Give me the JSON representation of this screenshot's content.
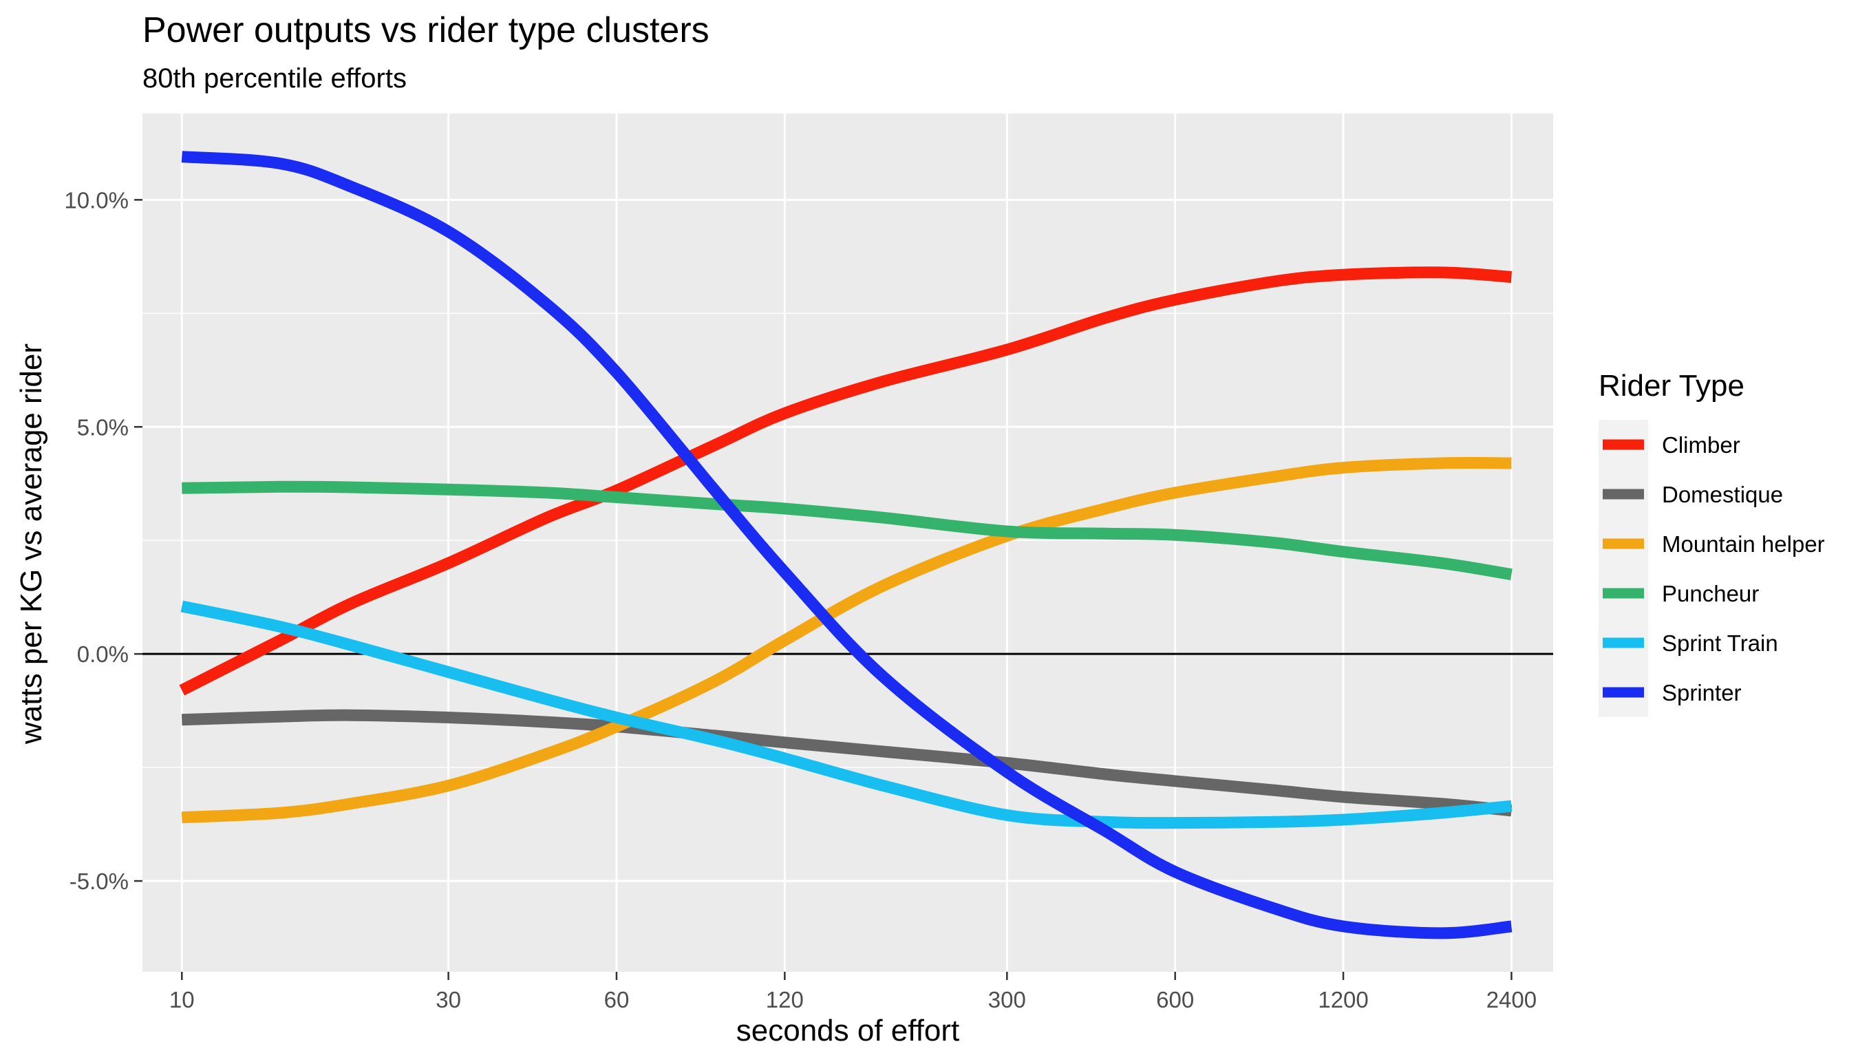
{
  "chart_data": {
    "type": "line",
    "title": "Power outputs vs rider type clusters",
    "subtitle": "80th percentile efforts",
    "xlabel": "seconds of effort",
    "ylabel": "watts per KG vs average rider",
    "x_scale": "log",
    "x_ticks": [
      10,
      30,
      60,
      120,
      300,
      600,
      1200,
      2400
    ],
    "x_tick_labels": [
      "10",
      "30",
      "60",
      "120",
      "300",
      "600",
      "1200",
      "2400"
    ],
    "xlim": [
      8.5,
      2850
    ],
    "y_ticks": [
      -5,
      0,
      5,
      10
    ],
    "y_tick_labels": [
      "-5.0%",
      "0.0%",
      "5.0%",
      "10.0%"
    ],
    "ylim": [
      -7.0,
      11.9
    ],
    "reference_line_y": 0,
    "grid": true,
    "legend_title": "Rider Type",
    "legend_position": "right",
    "x": [
      10,
      15,
      20,
      30,
      45,
      60,
      90,
      120,
      180,
      300,
      450,
      600,
      900,
      1200,
      1800,
      2400
    ],
    "series": [
      {
        "name": "Climber",
        "color": "#F8200A",
        "values": [
          -0.8,
          0.3,
          1.1,
          2.0,
          3.0,
          3.6,
          4.6,
          5.3,
          6.0,
          6.7,
          7.4,
          7.8,
          8.2,
          8.35,
          8.4,
          8.3
        ]
      },
      {
        "name": "Domestique",
        "color": "#666666",
        "values": [
          -1.45,
          -1.38,
          -1.35,
          -1.4,
          -1.5,
          -1.6,
          -1.8,
          -1.95,
          -2.15,
          -2.4,
          -2.65,
          -2.8,
          -3.0,
          -3.15,
          -3.3,
          -3.45
        ]
      },
      {
        "name": "Mountain helper",
        "color": "#F3A614",
        "values": [
          -3.6,
          -3.5,
          -3.3,
          -2.9,
          -2.2,
          -1.6,
          -0.6,
          0.3,
          1.5,
          2.6,
          3.2,
          3.55,
          3.9,
          4.1,
          4.2,
          4.2
        ]
      },
      {
        "name": "Puncheur",
        "color": "#35B26B",
        "values": [
          3.65,
          3.68,
          3.67,
          3.62,
          3.55,
          3.45,
          3.3,
          3.2,
          3.0,
          2.7,
          2.65,
          2.62,
          2.45,
          2.25,
          2.0,
          1.75
        ]
      },
      {
        "name": "Sprint Train",
        "color": "#18BEF0",
        "values": [
          1.05,
          0.6,
          0.2,
          -0.4,
          -1.0,
          -1.4,
          -1.9,
          -2.3,
          -2.9,
          -3.55,
          -3.7,
          -3.72,
          -3.7,
          -3.65,
          -3.5,
          -3.35
        ]
      },
      {
        "name": "Sprinter",
        "color": "#1A2BF2",
        "values": [
          10.95,
          10.8,
          10.3,
          9.3,
          7.7,
          6.2,
          3.6,
          1.8,
          -0.5,
          -2.6,
          -3.9,
          -4.8,
          -5.6,
          -6.0,
          -6.15,
          -6.0
        ]
      }
    ]
  }
}
